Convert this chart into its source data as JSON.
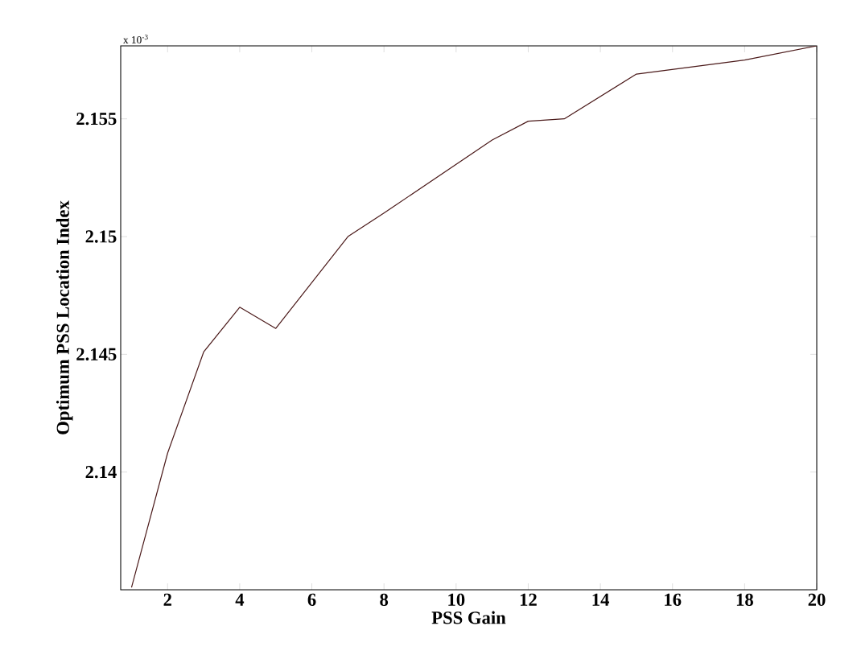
{
  "chart_data": {
    "type": "line",
    "xlabel": "PSS Gain",
    "ylabel": "Optimum PSS Location Index",
    "annotations": [
      "x 10$^{-3}$"
    ],
    "x": [
      1,
      2,
      3,
      4,
      5,
      7,
      8,
      11,
      12,
      13,
      15,
      18,
      20
    ],
    "values": [
      2.1351,
      2.1408,
      2.1451,
      2.147,
      2.1461,
      2.15,
      2.151,
      2.1541,
      2.1549,
      2.155,
      2.1569,
      2.1575,
      2.1581
    ],
    "color": "#4b1a1a",
    "xlim": [
      0.7,
      20
    ],
    "ylim": [
      2.135,
      2.1581
    ],
    "xticks": [
      2,
      4,
      6,
      8,
      10,
      12,
      14,
      16,
      18,
      20
    ],
    "yticks": [
      2.14,
      2.145,
      2.15,
      2.155
    ]
  }
}
